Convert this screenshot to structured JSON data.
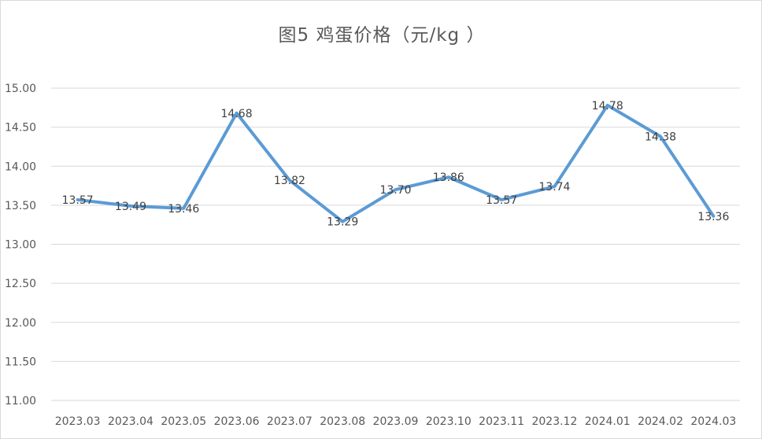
{
  "chart_data": {
    "type": "line",
    "title": "图5  鸡蛋价格（元/kg ）",
    "xlabel": "",
    "ylabel": "",
    "categories": [
      "2023.03",
      "2023.04",
      "2023.05",
      "2023.06",
      "2023.07",
      "2023.08",
      "2023.09",
      "2023.10",
      "2023.11",
      "2023.12",
      "2024.01",
      "2024.02",
      "2024.03"
    ],
    "series": [
      {
        "values": [
          13.57,
          13.49,
          13.46,
          14.68,
          13.82,
          13.29,
          13.7,
          13.86,
          13.57,
          13.74,
          14.78,
          14.38,
          13.36
        ],
        "labels": [
          "13.57",
          "13.49",
          "13.46",
          "14.68",
          "13.82",
          "13.29",
          "13.70",
          "13.86",
          "13.57",
          "13.74",
          "14.78",
          "14.38",
          "13.36"
        ]
      }
    ],
    "ylim": [
      11.0,
      15.0
    ],
    "yticks": [
      "11.00",
      "11.50",
      "12.00",
      "12.50",
      "13.00",
      "13.50",
      "14.00",
      "14.50",
      "15.00"
    ],
    "grid": true,
    "legend": "none",
    "colors": {
      "line": "#5b9bd5",
      "grid": "#d9d9d9",
      "text": "#595959"
    }
  }
}
